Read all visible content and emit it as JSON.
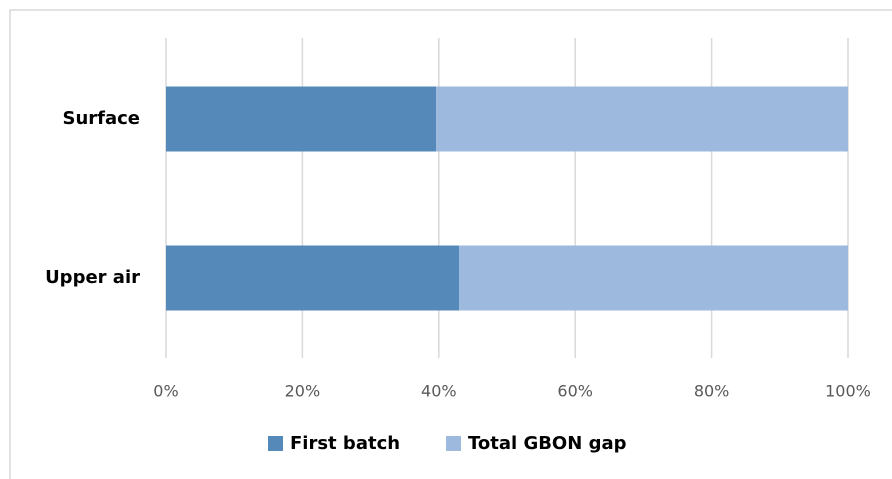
{
  "chart_data": {
    "type": "stacked_barh",
    "categories": [
      "Surface",
      "Upper air"
    ],
    "series": [
      {
        "name": "First batch",
        "color": "#5489b9",
        "values": [
          39.6,
          43
        ]
      },
      {
        "name": "Total GBON gap",
        "color": "#9db9dd",
        "values": [
          60.4,
          57
        ]
      }
    ],
    "xlim": [
      0,
      100
    ],
    "xticks": [
      {
        "value": 0,
        "label": "0%"
      },
      {
        "value": 20,
        "label": "20%"
      },
      {
        "value": 40,
        "label": "40%"
      },
      {
        "value": 60,
        "label": "60%"
      },
      {
        "value": 80,
        "label": "80%"
      },
      {
        "value": 100,
        "label": "100%"
      }
    ],
    "grid": true,
    "legend": "bottom"
  }
}
